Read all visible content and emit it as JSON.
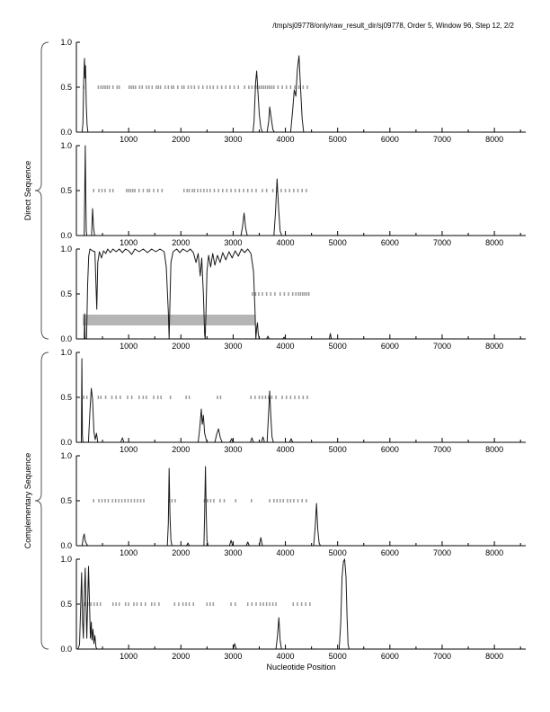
{
  "header": {
    "title": "/tmp/sj09778/only/raw_result_dir/sj09778, Order 5, Window 96, Step 12, 2/2"
  },
  "figure": {
    "xlabel": "Nucleotide Position",
    "group_labels": {
      "direct": "Direct Sequence",
      "complementary": "Complementary Sequence"
    },
    "colors": {
      "curve": "#1a1a1a",
      "mark": "#9a9a9a",
      "band": "#b5b5b5",
      "axis": "#000000",
      "brace": "#555555",
      "background": "#ffffff"
    },
    "axes": {
      "xlim": [
        0,
        8600
      ],
      "xtick_major_values": [
        1000,
        2000,
        3000,
        4000,
        5000,
        6000,
        7000,
        8000
      ],
      "xtick_labels": [
        "1000",
        "2000",
        "3000",
        "4000",
        "5000",
        "6000",
        "7000",
        "8000"
      ],
      "xtick_minor_step": 500,
      "ylim": [
        0,
        1
      ],
      "yticks": [
        {
          "v": 1.0,
          "label": "1.0"
        },
        {
          "v": 0.5,
          "label": "0.5"
        },
        {
          "v": 0.0,
          "label": "0.0"
        }
      ]
    }
  },
  "chart_data": [
    {
      "id": "direct-frame-1",
      "group": "Direct Sequence",
      "type": "line",
      "ylim": [
        0,
        1
      ],
      "curve": [
        [
          30,
          0
        ],
        [
          110,
          0
        ],
        [
          125,
          0.1
        ],
        [
          140,
          0.55
        ],
        [
          155,
          0.82
        ],
        [
          165,
          0.6
        ],
        [
          175,
          0.74
        ],
        [
          190,
          0.3
        ],
        [
          205,
          0.08
        ],
        [
          220,
          0
        ],
        [
          3380,
          0
        ],
        [
          3400,
          0.12
        ],
        [
          3430,
          0.55
        ],
        [
          3450,
          0.68
        ],
        [
          3470,
          0.5
        ],
        [
          3500,
          0.2
        ],
        [
          3530,
          0.05
        ],
        [
          3560,
          0
        ],
        [
          3650,
          0
        ],
        [
          3680,
          0.12
        ],
        [
          3700,
          0.28
        ],
        [
          3730,
          0.15
        ],
        [
          3760,
          0.03
        ],
        [
          3790,
          0
        ],
        [
          4100,
          0
        ],
        [
          4140,
          0.25
        ],
        [
          4170,
          0.47
        ],
        [
          4200,
          0.4
        ],
        [
          4230,
          0.7
        ],
        [
          4260,
          0.85
        ],
        [
          4290,
          0.5
        ],
        [
          4320,
          0.15
        ],
        [
          4350,
          0
        ],
        [
          8600,
          0
        ]
      ],
      "marks_y": 0.5,
      "marks_x": [
        140,
        420,
        470,
        510,
        550,
        590,
        630,
        700,
        780,
        820,
        1010,
        1050,
        1090,
        1130,
        1210,
        1260,
        1340,
        1390,
        1450,
        1530,
        1570,
        1610,
        1700,
        1760,
        1820,
        1860,
        1940,
        2020,
        2060,
        2140,
        2200,
        2260,
        2340,
        2420,
        2500,
        2560,
        2620,
        2700,
        2780,
        2860,
        2940,
        3020,
        3100,
        3220,
        3300,
        3360,
        3420,
        3460,
        3500,
        3540,
        3580,
        3620,
        3660,
        3700,
        3740,
        3780,
        3860,
        3940,
        4020,
        4100,
        4180,
        4260,
        4340,
        4420
      ],
      "band": null
    },
    {
      "id": "direct-frame-2",
      "group": "Direct Sequence",
      "type": "line",
      "ylim": [
        0,
        1
      ],
      "curve": [
        [
          30,
          0
        ],
        [
          150,
          0
        ],
        [
          160,
          0.5
        ],
        [
          170,
          1.0
        ],
        [
          180,
          0.4
        ],
        [
          190,
          0.05
        ],
        [
          200,
          0
        ],
        [
          290,
          0
        ],
        [
          310,
          0.3
        ],
        [
          330,
          0.08
        ],
        [
          350,
          0
        ],
        [
          3150,
          0
        ],
        [
          3180,
          0.1
        ],
        [
          3210,
          0.25
        ],
        [
          3240,
          0.08
        ],
        [
          3270,
          0
        ],
        [
          3780,
          0
        ],
        [
          3810,
          0.25
        ],
        [
          3840,
          0.63
        ],
        [
          3870,
          0.3
        ],
        [
          3900,
          0.05
        ],
        [
          3930,
          0
        ],
        [
          8600,
          0
        ]
      ],
      "marks_y": 0.5,
      "marks_x": [
        330,
        430,
        490,
        550,
        640,
        700,
        960,
        1000,
        1040,
        1080,
        1120,
        1200,
        1280,
        1360,
        1400,
        1480,
        1560,
        1640,
        2060,
        2120,
        2160,
        2220,
        2260,
        2320,
        2380,
        2440,
        2500,
        2560,
        2640,
        2720,
        2800,
        2880,
        2960,
        3040,
        3120,
        3200,
        3280,
        3360,
        3440,
        3560,
        3640,
        3760,
        3840,
        3920,
        4000,
        4080,
        4160,
        4240,
        4320,
        4400
      ],
      "band": null
    },
    {
      "id": "direct-frame-3",
      "group": "Direct Sequence",
      "type": "line",
      "ylim": [
        0,
        1
      ],
      "curve": [
        [
          30,
          0
        ],
        [
          150,
          0
        ],
        [
          158,
          0.28
        ],
        [
          166,
          0
        ],
        [
          195,
          0
        ],
        [
          215,
          0.6
        ],
        [
          235,
          0.92
        ],
        [
          260,
          1.0
        ],
        [
          310,
          0.98
        ],
        [
          355,
          0.97
        ],
        [
          375,
          0.6
        ],
        [
          390,
          0.33
        ],
        [
          410,
          0.85
        ],
        [
          440,
          0.97
        ],
        [
          480,
          0.9
        ],
        [
          520,
          0.98
        ],
        [
          560,
          0.95
        ],
        [
          600,
          1.0
        ],
        [
          650,
          0.96
        ],
        [
          700,
          1.0
        ],
        [
          760,
          0.97
        ],
        [
          820,
          1.0
        ],
        [
          880,
          0.96
        ],
        [
          940,
          1.0
        ],
        [
          1000,
          0.98
        ],
        [
          1060,
          0.94
        ],
        [
          1120,
          1.0
        ],
        [
          1200,
          0.97
        ],
        [
          1280,
          1.0
        ],
        [
          1360,
          0.96
        ],
        [
          1440,
          1.0
        ],
        [
          1520,
          0.97
        ],
        [
          1600,
          1.0
        ],
        [
          1680,
          0.97
        ],
        [
          1720,
          0.8
        ],
        [
          1760,
          0.3
        ],
        [
          1775,
          0.0
        ],
        [
          1790,
          0.4
        ],
        [
          1810,
          0.85
        ],
        [
          1850,
          0.97
        ],
        [
          1920,
          1.0
        ],
        [
          1980,
          0.96
        ],
        [
          2040,
          1.0
        ],
        [
          2120,
          0.97
        ],
        [
          2180,
          1.0
        ],
        [
          2240,
          0.96
        ],
        [
          2290,
          0.85
        ],
        [
          2330,
          0.95
        ],
        [
          2370,
          0.7
        ],
        [
          2400,
          0.9
        ],
        [
          2430,
          0.5
        ],
        [
          2455,
          0.05
        ],
        [
          2465,
          0.0
        ],
        [
          2480,
          0.3
        ],
        [
          2500,
          0.75
        ],
        [
          2530,
          0.93
        ],
        [
          2570,
          0.8
        ],
        [
          2610,
          0.95
        ],
        [
          2650,
          0.82
        ],
        [
          2700,
          0.93
        ],
        [
          2750,
          0.85
        ],
        [
          2800,
          0.96
        ],
        [
          2860,
          0.88
        ],
        [
          2920,
          0.97
        ],
        [
          2980,
          0.9
        ],
        [
          3040,
          0.98
        ],
        [
          3100,
          0.92
        ],
        [
          3160,
          1.0
        ],
        [
          3220,
          0.96
        ],
        [
          3280,
          1.0
        ],
        [
          3340,
          0.95
        ],
        [
          3390,
          0.75
        ],
        [
          3420,
          0.3
        ],
        [
          3435,
          0.0
        ],
        [
          3450,
          0.12
        ],
        [
          3465,
          0.18
        ],
        [
          3480,
          0.06
        ],
        [
          3500,
          0
        ],
        [
          3640,
          0
        ],
        [
          3665,
          0.03
        ],
        [
          3690,
          0
        ],
        [
          3950,
          0
        ],
        [
          3975,
          0.02
        ],
        [
          4000,
          0
        ],
        [
          4840,
          0
        ],
        [
          4860,
          0.06
        ],
        [
          4880,
          0
        ],
        [
          8600,
          0
        ]
      ],
      "marks_y": 0.5,
      "marks_x": [
        3370,
        3430,
        3490,
        3560,
        3640,
        3720,
        3800,
        3900,
        3980,
        4060,
        4140,
        4200,
        4250,
        4290,
        4330,
        4370,
        4410,
        4450
      ],
      "band": {
        "x0": 120,
        "x1": 3430,
        "y0": 0.15,
        "y1": 0.27
      }
    },
    {
      "id": "complementary-frame-1",
      "group": "Complementary Sequence",
      "type": "line",
      "ylim": [
        0,
        1
      ],
      "curve": [
        [
          30,
          0
        ],
        [
          95,
          0
        ],
        [
          105,
          0.93
        ],
        [
          115,
          0.08
        ],
        [
          125,
          0
        ],
        [
          230,
          0
        ],
        [
          260,
          0.35
        ],
        [
          285,
          0.6
        ],
        [
          310,
          0.48
        ],
        [
          335,
          0.12
        ],
        [
          360,
          0.03
        ],
        [
          385,
          0.1
        ],
        [
          410,
          0
        ],
        [
          850,
          0
        ],
        [
          880,
          0.05
        ],
        [
          910,
          0
        ],
        [
          2330,
          0
        ],
        [
          2360,
          0.15
        ],
        [
          2390,
          0.37
        ],
        [
          2410,
          0.2
        ],
        [
          2430,
          0.3
        ],
        [
          2455,
          0.1
        ],
        [
          2480,
          0.04
        ],
        [
          2505,
          0
        ],
        [
          2650,
          0
        ],
        [
          2685,
          0.09
        ],
        [
          2720,
          0.15
        ],
        [
          2755,
          0.05
        ],
        [
          2790,
          0
        ],
        [
          2940,
          0
        ],
        [
          2970,
          0.04
        ],
        [
          3000,
          0
        ],
        [
          3330,
          0
        ],
        [
          3360,
          0.05
        ],
        [
          3390,
          0
        ],
        [
          3540,
          0
        ],
        [
          3570,
          0.06
        ],
        [
          3600,
          0
        ],
        [
          3650,
          0
        ],
        [
          3680,
          0.35
        ],
        [
          3700,
          0.57
        ],
        [
          3720,
          0.3
        ],
        [
          3745,
          0.06
        ],
        [
          3770,
          0
        ],
        [
          4080,
          0
        ],
        [
          4110,
          0.04
        ],
        [
          4140,
          0
        ],
        [
          8600,
          0
        ]
      ],
      "marks_y": 0.5,
      "marks_x": [
        140,
        200,
        420,
        470,
        560,
        680,
        760,
        840,
        980,
        1060,
        1200,
        1280,
        1340,
        1480,
        1560,
        1620,
        1800,
        2100,
        2160,
        2700,
        2760,
        3340,
        3420,
        3500,
        3560,
        3620,
        3680,
        3740,
        3820,
        3940,
        4020,
        4100,
        4180,
        4260,
        4340,
        4420
      ],
      "band": null
    },
    {
      "id": "complementary-frame-2",
      "group": "Complementary Sequence",
      "type": "line",
      "ylim": [
        0,
        1
      ],
      "curve": [
        [
          30,
          0
        ],
        [
          110,
          0
        ],
        [
          130,
          0.09
        ],
        [
          150,
          0.13
        ],
        [
          170,
          0.05
        ],
        [
          195,
          0.02
        ],
        [
          220,
          0
        ],
        [
          1740,
          0
        ],
        [
          1760,
          0.25
        ],
        [
          1775,
          0.86
        ],
        [
          1790,
          0.35
        ],
        [
          1810,
          0.06
        ],
        [
          1830,
          0
        ],
        [
          2110,
          0
        ],
        [
          2135,
          0.03
        ],
        [
          2160,
          0
        ],
        [
          2440,
          0
        ],
        [
          2455,
          0.35
        ],
        [
          2470,
          0.88
        ],
        [
          2485,
          0.35
        ],
        [
          2500,
          0.06
        ],
        [
          2520,
          0
        ],
        [
          2930,
          0
        ],
        [
          2960,
          0.06
        ],
        [
          2990,
          0
        ],
        [
          3250,
          0
        ],
        [
          3280,
          0.04
        ],
        [
          3310,
          0
        ],
        [
          3500,
          0
        ],
        [
          3530,
          0.09
        ],
        [
          3560,
          0
        ],
        [
          4540,
          0
        ],
        [
          4570,
          0.2
        ],
        [
          4595,
          0.47
        ],
        [
          4620,
          0.18
        ],
        [
          4645,
          0.03
        ],
        [
          4670,
          0
        ],
        [
          8600,
          0
        ]
      ],
      "marks_y": 0.5,
      "marks_x": [
        330,
        430,
        490,
        550,
        610,
        690,
        750,
        810,
        870,
        930,
        990,
        1050,
        1110,
        1170,
        1230,
        1290,
        1770,
        1830,
        1890,
        2450,
        2510,
        2570,
        2630,
        2750,
        2830,
        3050,
        3350,
        3700,
        3780,
        3840,
        3900,
        3960,
        4040,
        4100,
        4160,
        4240,
        4320,
        4400
      ],
      "band": null
    },
    {
      "id": "complementary-frame-3",
      "group": "Complementary Sequence",
      "type": "line",
      "ylim": [
        0,
        1
      ],
      "curve": [
        [
          30,
          0
        ],
        [
          60,
          0.05
        ],
        [
          80,
          0.45
        ],
        [
          100,
          0.85
        ],
        [
          118,
          0.3
        ],
        [
          135,
          0.12
        ],
        [
          150,
          0.55
        ],
        [
          168,
          0.9
        ],
        [
          185,
          0.45
        ],
        [
          200,
          0.12
        ],
        [
          215,
          0.5
        ],
        [
          232,
          0.92
        ],
        [
          250,
          0.55
        ],
        [
          268,
          0.12
        ],
        [
          285,
          0.3
        ],
        [
          300,
          0.1
        ],
        [
          318,
          0.22
        ],
        [
          335,
          0.06
        ],
        [
          355,
          0.15
        ],
        [
          375,
          0.02
        ],
        [
          395,
          0
        ],
        [
          3000,
          0
        ],
        [
          3030,
          0.06
        ],
        [
          3060,
          0
        ],
        [
          3820,
          0
        ],
        [
          3850,
          0.15
        ],
        [
          3875,
          0.35
        ],
        [
          3900,
          0.1
        ],
        [
          3925,
          0
        ],
        [
          5030,
          0
        ],
        [
          5060,
          0.3
        ],
        [
          5085,
          0.8
        ],
        [
          5110,
          0.97
        ],
        [
          5135,
          1.0
        ],
        [
          5160,
          0.8
        ],
        [
          5180,
          0.35
        ],
        [
          5200,
          0.05
        ],
        [
          5220,
          0
        ],
        [
          8600,
          0
        ]
      ],
      "marks_y": 0.5,
      "marks_x": [
        160,
        220,
        280,
        340,
        400,
        460,
        700,
        760,
        820,
        940,
        1000,
        1100,
        1160,
        1240,
        1320,
        1440,
        1500,
        1580,
        1880,
        1960,
        2040,
        2100,
        2160,
        2240,
        2500,
        2560,
        2620,
        2960,
        3040,
        3280,
        3360,
        3440,
        3520,
        3580,
        3640,
        3700,
        3760,
        3820,
        4150,
        4230,
        4310,
        4390,
        4470
      ],
      "band": null
    }
  ]
}
